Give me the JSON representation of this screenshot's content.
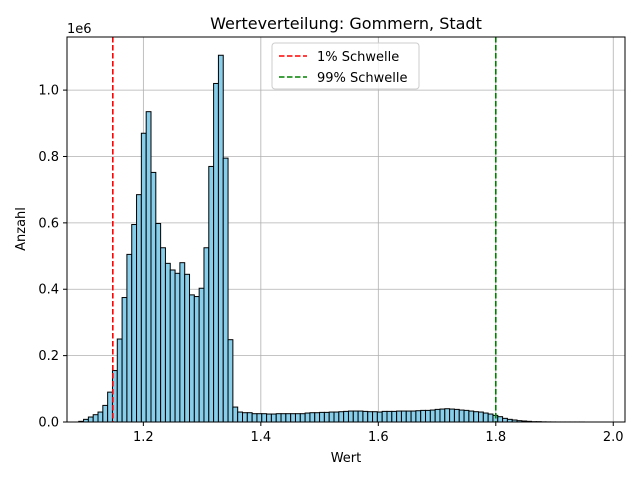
{
  "chart_data": {
    "type": "bar",
    "title": "Werteverteilung: Gommern, Stadt",
    "xlabel": "Wert",
    "ylabel": "Anzahl",
    "y_scale_label": "1e6",
    "y_multiplier": 1000000,
    "xlim": [
      1.07,
      2.02
    ],
    "ylim": [
      0,
      1.16
    ],
    "xticks": [
      1.2,
      1.4,
      1.6,
      1.8,
      2.0
    ],
    "xtick_labels": [
      "1.2",
      "1.4",
      "1.6",
      "1.8",
      "2.0"
    ],
    "yticks": [
      0.0,
      0.2,
      0.4,
      0.6,
      0.8,
      1.0
    ],
    "ytick_labels": [
      "0.0",
      "0.2",
      "0.4",
      "0.6",
      "0.8",
      "1.0"
    ],
    "grid": true,
    "bar_color": "#87ceeb",
    "bar_edge_color": "#000000",
    "bin_start": 1.09,
    "bin_width": 0.0082,
    "values": [
      0.002,
      0.008,
      0.015,
      0.022,
      0.03,
      0.05,
      0.09,
      0.155,
      0.25,
      0.375,
      0.505,
      0.595,
      0.685,
      0.87,
      0.935,
      0.752,
      0.598,
      0.525,
      0.478,
      0.458,
      0.448,
      0.48,
      0.445,
      0.383,
      0.378,
      0.403,
      0.525,
      0.77,
      1.02,
      1.105,
      0.795,
      0.248,
      0.045,
      0.03,
      0.028,
      0.028,
      0.025,
      0.025,
      0.025,
      0.024,
      0.024,
      0.025,
      0.025,
      0.025,
      0.025,
      0.025,
      0.025,
      0.027,
      0.028,
      0.028,
      0.029,
      0.029,
      0.03,
      0.03,
      0.031,
      0.032,
      0.033,
      0.033,
      0.033,
      0.032,
      0.031,
      0.031,
      0.03,
      0.032,
      0.032,
      0.032,
      0.033,
      0.033,
      0.033,
      0.033,
      0.034,
      0.035,
      0.035,
      0.036,
      0.038,
      0.039,
      0.04,
      0.039,
      0.038,
      0.036,
      0.035,
      0.033,
      0.031,
      0.03,
      0.027,
      0.024,
      0.02,
      0.016,
      0.011,
      0.008,
      0.006,
      0.004,
      0.003,
      0.002,
      0.001,
      0.001,
      0.0005,
      0.0003,
      0.0002,
      0.0001,
      0.0001,
      0.0001,
      0.0001,
      0.0001,
      0.0001
    ],
    "vlines": [
      {
        "name": "1% Schwelle",
        "x": 1.148,
        "color": "#ff0000"
      },
      {
        "name": "99% Schwelle",
        "x": 1.8,
        "color": "#008000"
      }
    ],
    "legend_position": "upper center"
  }
}
